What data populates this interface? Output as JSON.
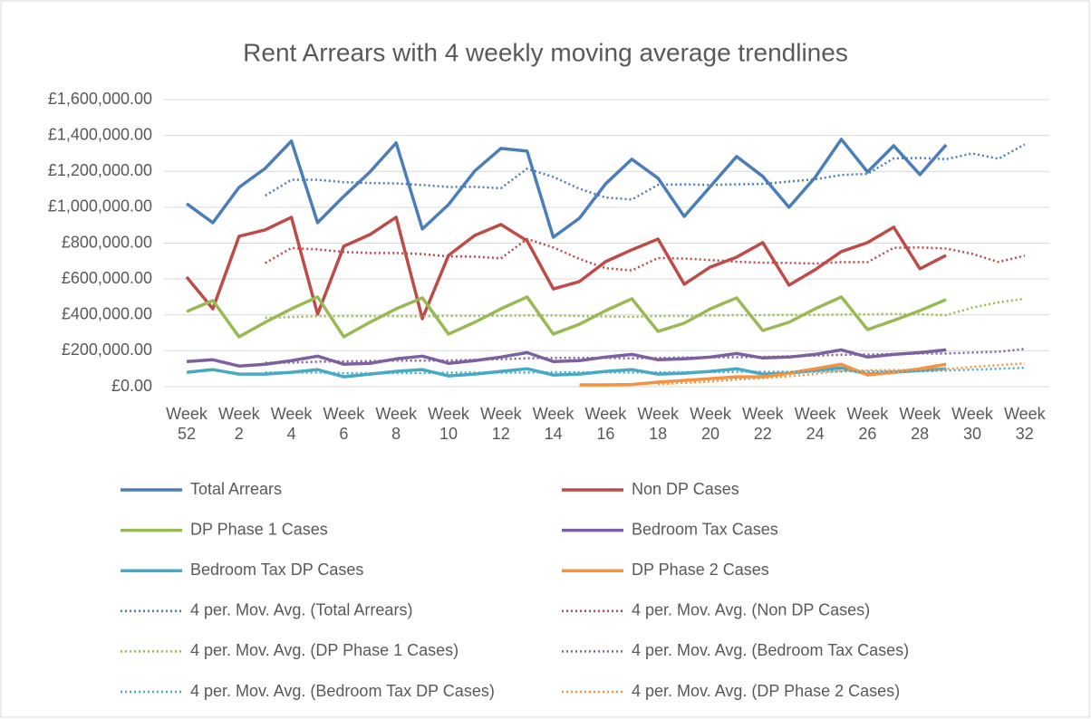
{
  "chart_data": {
    "type": "line",
    "title": "Rent Arrears with 4 weekly moving average trendlines",
    "categories": [
      "Week 52",
      null,
      "Week 2",
      null,
      "Week 4",
      null,
      "Week 6",
      null,
      "Week 8",
      null,
      "Week 10",
      null,
      "Week 12",
      null,
      "Week 14",
      null,
      "Week 16",
      null,
      "Week 18",
      null,
      "Week 20",
      null,
      "Week 22",
      null,
      "Week 24",
      null,
      "Week 26",
      null,
      "Week 28",
      null,
      "Week 30",
      null,
      "Week 32"
    ],
    "ylim": [
      0,
      1600000
    ],
    "yticks": [
      {
        "value": 0,
        "label": "£0.00"
      },
      {
        "value": 200000,
        "label": "£200,000.00"
      },
      {
        "value": 400000,
        "label": "£400,000.00"
      },
      {
        "value": 600000,
        "label": "£600,000.00"
      },
      {
        "value": 800000,
        "label": "£800,000.00"
      },
      {
        "value": 1000000,
        "label": "£1,000,000.00"
      },
      {
        "value": 1200000,
        "label": "£1,200,000.00"
      },
      {
        "value": 1400000,
        "label": "£1,400,000.00"
      },
      {
        "value": 1600000,
        "label": "£1,600,000.00"
      }
    ],
    "grid": true,
    "legend": "bottom",
    "series": [
      {
        "name": "Total Arrears",
        "color": "#4a7ebb",
        "style": "solid",
        "values": [
          1020000,
          914000,
          1111000,
          1217000,
          1369000,
          914000,
          1061000,
          1197000,
          1359000,
          879000,
          1015000,
          1202000,
          1328000,
          1313000,
          833000,
          939000,
          1131000,
          1268000,
          1162000,
          949000,
          1116000,
          1283000,
          1172000,
          1000000,
          1167000,
          1379000,
          1197000,
          1343000,
          1182000,
          1348000,
          null,
          null,
          null
        ]
      },
      {
        "name": "Non DP Cases",
        "color": "#be4b48",
        "style": "solid",
        "values": [
          611000,
          434000,
          838000,
          874000,
          944000,
          404000,
          783000,
          848000,
          944000,
          379000,
          732000,
          843000,
          904000,
          813000,
          545000,
          586000,
          697000,
          763000,
          823000,
          571000,
          667000,
          722000,
          803000,
          566000,
          652000,
          753000,
          803000,
          889000,
          657000,
          732000,
          null,
          null,
          null
        ]
      },
      {
        "name": "DP Phase 1 Cases",
        "color": "#98b954",
        "style": "solid",
        "values": [
          419000,
          480000,
          278000,
          359000,
          434000,
          500000,
          278000,
          359000,
          434000,
          495000,
          293000,
          359000,
          434000,
          500000,
          293000,
          348000,
          424000,
          490000,
          308000,
          354000,
          434000,
          495000,
          313000,
          359000,
          434000,
          500000,
          318000,
          369000,
          424000,
          485000,
          null,
          null,
          null
        ]
      },
      {
        "name": "Bedroom Tax Cases",
        "color": "#7d60a0",
        "style": "solid",
        "values": [
          140000,
          150000,
          115000,
          125000,
          145000,
          170000,
          125000,
          130000,
          155000,
          170000,
          130000,
          145000,
          165000,
          190000,
          140000,
          145000,
          165000,
          180000,
          150000,
          155000,
          165000,
          185000,
          160000,
          165000,
          180000,
          205000,
          165000,
          180000,
          190000,
          205000,
          null,
          null,
          null
        ]
      },
      {
        "name": "Bedroom Tax DP Cases",
        "color": "#46aac5",
        "style": "solid",
        "values": [
          80000,
          95000,
          70000,
          70000,
          80000,
          95000,
          55000,
          70000,
          85000,
          95000,
          60000,
          70000,
          85000,
          100000,
          65000,
          70000,
          85000,
          95000,
          70000,
          75000,
          85000,
          100000,
          70000,
          75000,
          90000,
          105000,
          70000,
          80000,
          90000,
          100000,
          null,
          null,
          null
        ]
      },
      {
        "name": "DP Phase 2 Cases",
        "color": "#f69240",
        "style": "solid",
        "values": [
          null,
          null,
          null,
          null,
          null,
          null,
          null,
          null,
          null,
          null,
          null,
          null,
          null,
          null,
          null,
          10000,
          10000,
          12000,
          25000,
          35000,
          45000,
          55000,
          55000,
          75000,
          100000,
          125000,
          65000,
          80000,
          100000,
          125000,
          null,
          null,
          null
        ]
      },
      {
        "name": "4 per. Mov. Avg. (Total Arrears)",
        "color": "#4a7ebb",
        "style": "dotted",
        "values": [
          null,
          null,
          null,
          1065000,
          1153000,
          1153000,
          1140000,
          1135000,
          1133000,
          1124000,
          1113000,
          1114000,
          1106000,
          1215000,
          1169000,
          1103000,
          1054000,
          1043000,
          1125000,
          1128000,
          1124000,
          1128000,
          1130000,
          1143000,
          1156000,
          1180000,
          1186000,
          1272000,
          1275000,
          1268000,
          1300000,
          1270000,
          1350000
        ]
      },
      {
        "name": "4 per. Mov. Avg. (Non DP Cases)",
        "color": "#be4b48",
        "style": "dotted",
        "values": [
          null,
          null,
          null,
          689000,
          773000,
          765000,
          751000,
          745000,
          745000,
          739000,
          726000,
          725000,
          715000,
          823000,
          776000,
          712000,
          660000,
          648000,
          717000,
          714000,
          706000,
          696000,
          691000,
          690000,
          686000,
          694000,
          694000,
          774000,
          776000,
          770000,
          740000,
          695000,
          730000
        ]
      },
      {
        "name": "4 per. Mov. Avg. (DP Phase 1 Cases)",
        "color": "#98b954",
        "style": "dotted",
        "values": [
          null,
          null,
          null,
          384000,
          388000,
          393000,
          393000,
          393000,
          393000,
          392000,
          395000,
          395000,
          395000,
          397000,
          397000,
          394000,
          391000,
          389000,
          393000,
          394000,
          397000,
          398000,
          399000,
          400000,
          400000,
          402000,
          403000,
          405000,
          403000,
          399000,
          440000,
          470000,
          490000
        ]
      },
      {
        "name": "4 per. Mov. Avg. (Bedroom Tax Cases)",
        "color": "#7d60a0",
        "style": "dotted",
        "values": [
          null,
          null,
          null,
          133000,
          134000,
          139000,
          141000,
          143000,
          145000,
          145000,
          146000,
          150000,
          153000,
          158000,
          160000,
          160000,
          160000,
          158000,
          160000,
          163000,
          163000,
          164000,
          166000,
          169000,
          173000,
          178000,
          179000,
          183000,
          185000,
          185000,
          190000,
          195000,
          210000
        ]
      },
      {
        "name": "4 per. Mov. Avg. (Bedroom Tax DP Cases)",
        "color": "#46aac5",
        "style": "dotted",
        "values": [
          null,
          null,
          null,
          79000,
          79000,
          79000,
          75000,
          75000,
          76000,
          76000,
          78000,
          78000,
          78000,
          79000,
          80000,
          80000,
          80000,
          79000,
          80000,
          81000,
          81000,
          83000,
          83000,
          83000,
          84000,
          85000,
          85000,
          86000,
          86000,
          90000,
          95000,
          100000,
          105000
        ]
      },
      {
        "name": "4 per. Mov. Avg. (DP Phase 2 Cases)",
        "color": "#f69240",
        "style": "dotted",
        "values": [
          null,
          null,
          null,
          null,
          null,
          null,
          null,
          null,
          null,
          null,
          null,
          null,
          null,
          null,
          null,
          null,
          null,
          null,
          14000,
          21000,
          29000,
          40000,
          48000,
          58000,
          71000,
          89000,
          91000,
          93000,
          93000,
          98000,
          110000,
          120000,
          130000
        ]
      }
    ]
  }
}
